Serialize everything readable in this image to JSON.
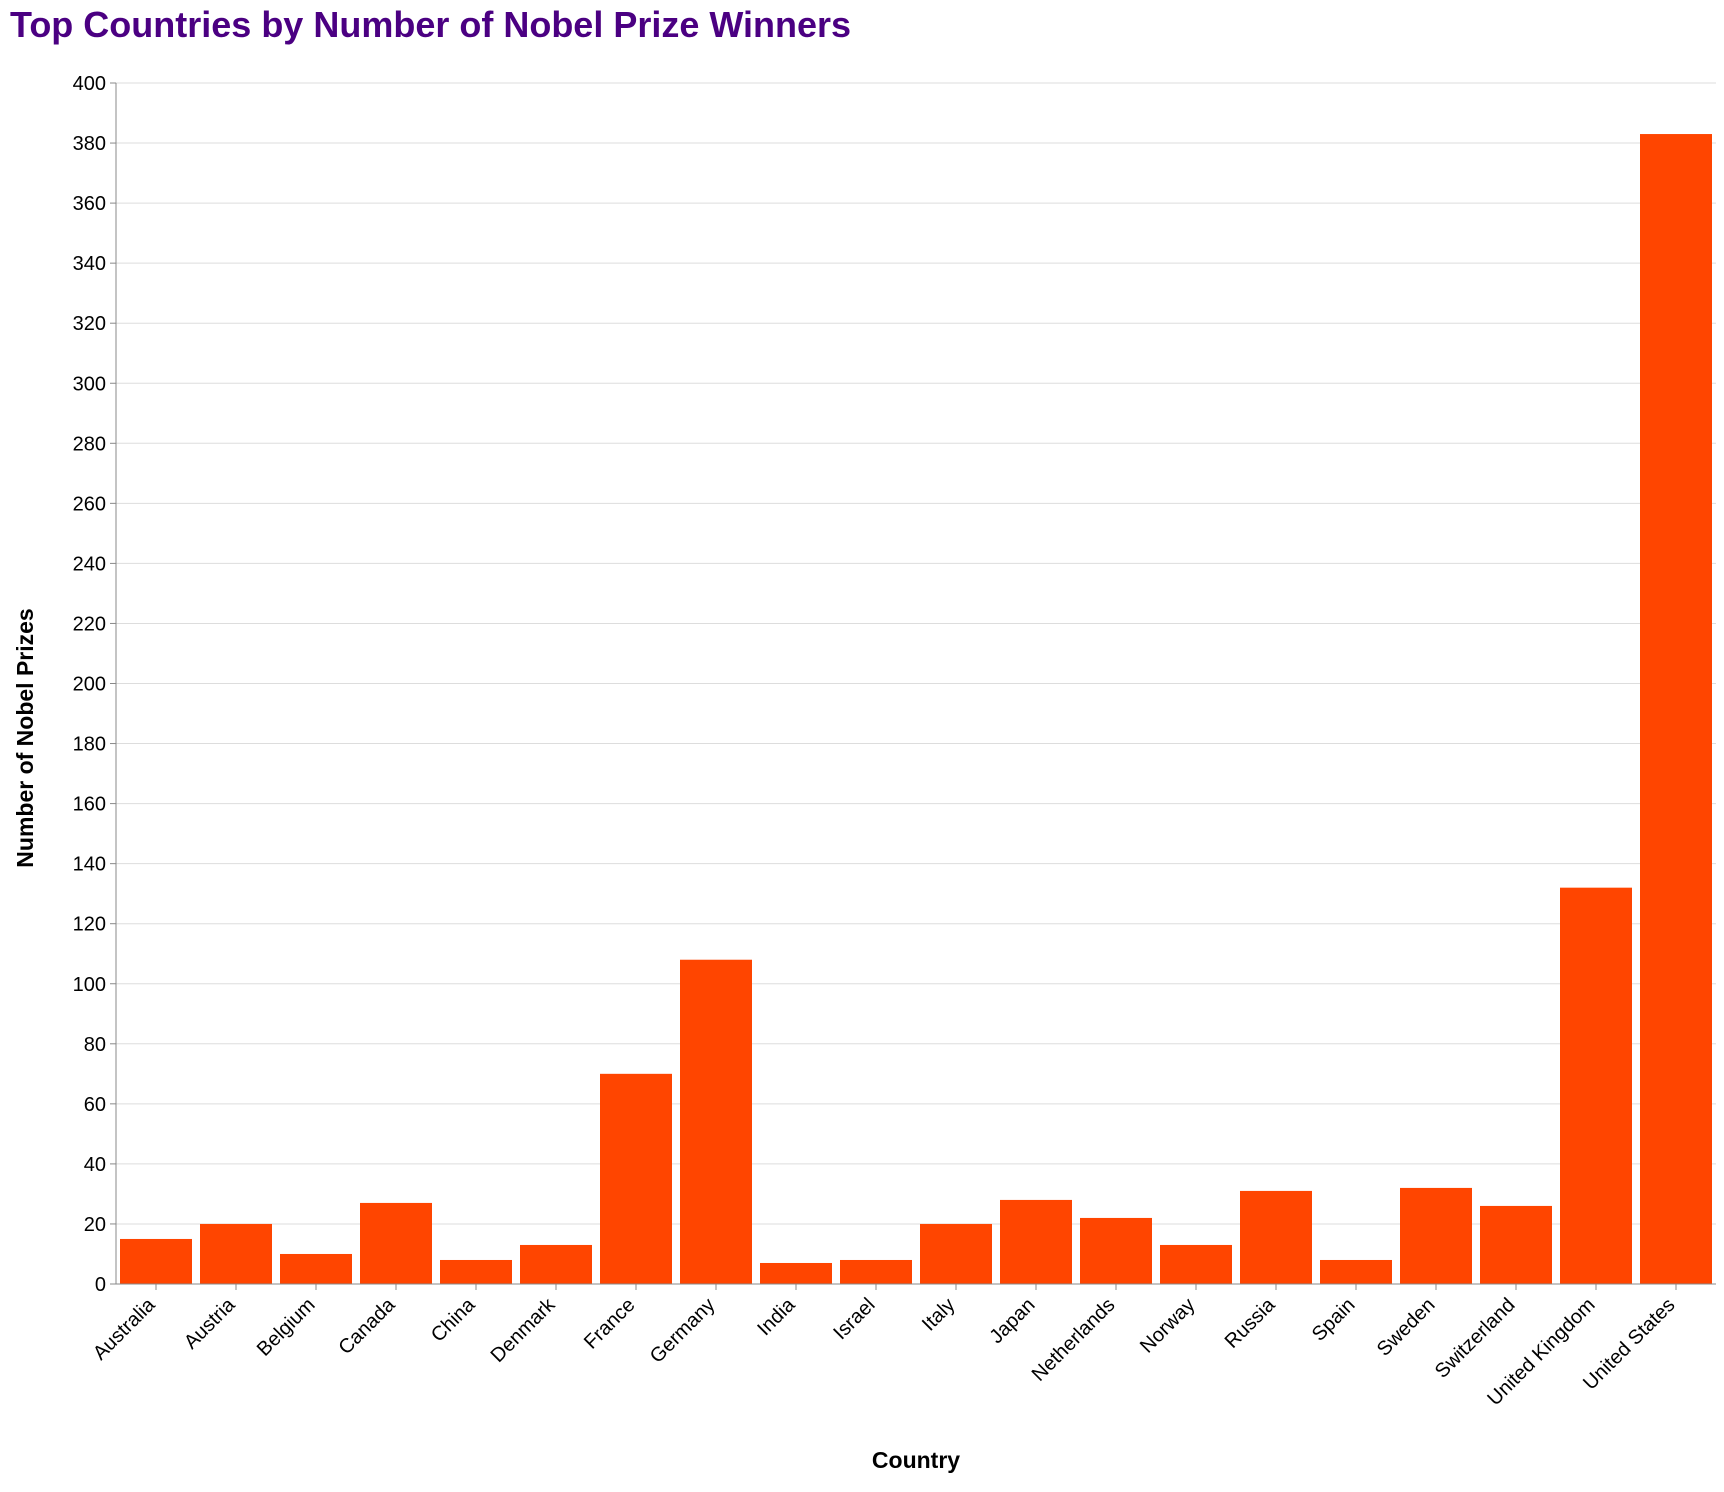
{
  "chart_data": {
    "type": "bar",
    "title": "Top Countries by Number of Nobel Prize Winners",
    "xlabel": "Country",
    "ylabel": "Number of Nobel Prizes",
    "ylim": [
      0,
      400
    ],
    "ytick_step": 20,
    "grid": true,
    "bar_color": "#FF4500",
    "title_color": "#4B0082",
    "categories": [
      "Australia",
      "Austria",
      "Belgium",
      "Canada",
      "China",
      "Denmark",
      "France",
      "Germany",
      "India",
      "Israel",
      "Italy",
      "Japan",
      "Netherlands",
      "Norway",
      "Russia",
      "Spain",
      "Sweden",
      "Switzerland",
      "United Kingdom",
      "United States"
    ],
    "values": [
      15,
      20,
      10,
      27,
      8,
      13,
      70,
      108,
      7,
      8,
      20,
      28,
      22,
      13,
      31,
      8,
      32,
      26,
      132,
      383
    ]
  }
}
